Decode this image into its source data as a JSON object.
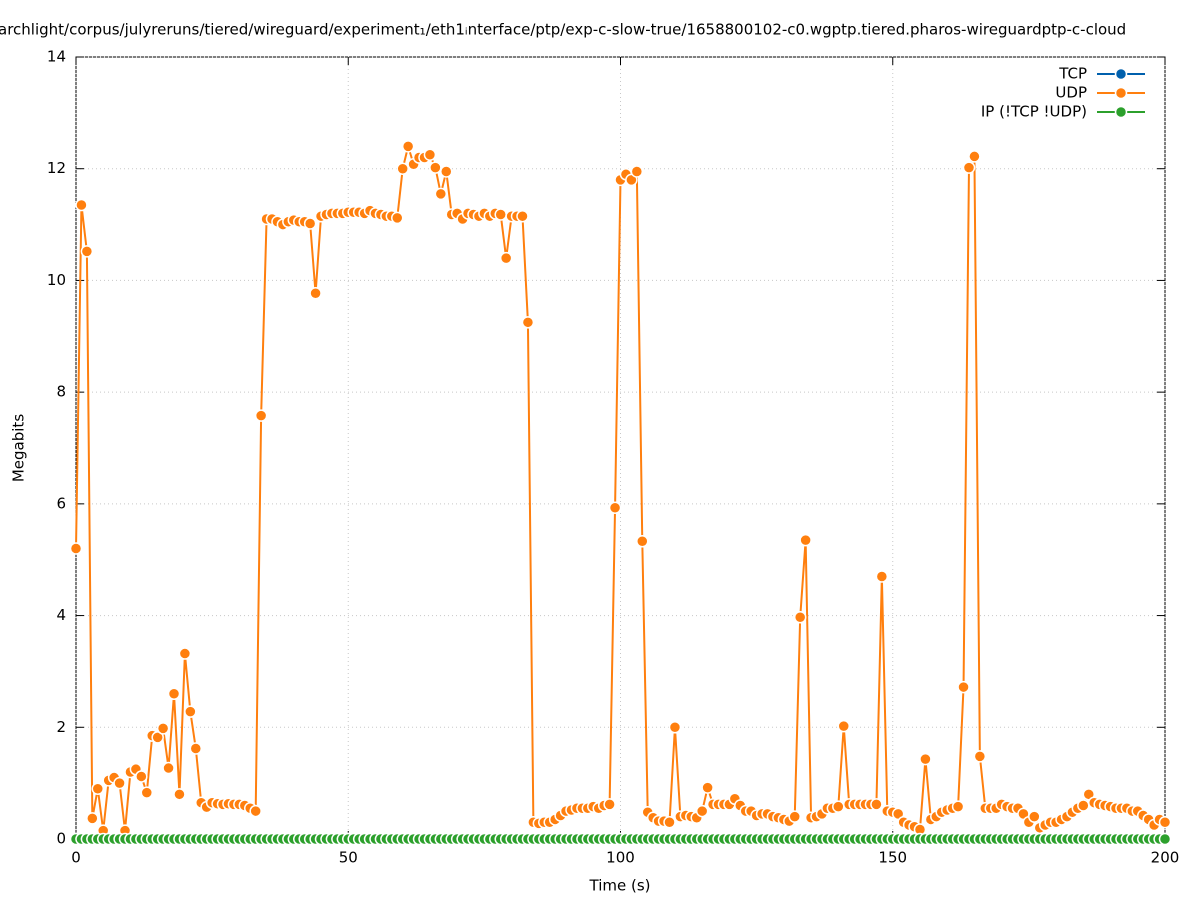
{
  "chart_data": {
    "type": "line",
    "title": "archlight/corpus/julyreruns/tiered/wireguard/experiment₁/eth1ᵢnterface/ptp/exp-c-slow-true/1658800102-c0.wgptp.tiered.pharos-wireguardptp-c-cloud",
    "xlabel": "Time (s)",
    "ylabel": "Megabits",
    "xlim": [
      0,
      200
    ],
    "xticks": [
      0,
      50,
      100,
      150,
      200
    ],
    "ylim": [
      0,
      14
    ],
    "yticks": [
      0,
      2,
      4,
      6,
      8,
      10,
      12,
      14
    ],
    "grid": true,
    "legend": "top-right",
    "x": [
      0,
      1,
      2,
      3,
      4,
      5,
      6,
      7,
      8,
      9,
      10,
      11,
      12,
      13,
      14,
      15,
      16,
      17,
      18,
      19,
      20,
      21,
      22,
      23,
      24,
      25,
      26,
      27,
      28,
      29,
      30,
      31,
      32,
      33,
      34,
      35,
      36,
      37,
      38,
      39,
      40,
      41,
      42,
      43,
      44,
      45,
      46,
      47,
      48,
      49,
      50,
      51,
      52,
      53,
      54,
      55,
      56,
      57,
      58,
      59,
      60,
      61,
      62,
      63,
      64,
      65,
      66,
      67,
      68,
      69,
      70,
      71,
      72,
      73,
      74,
      75,
      76,
      77,
      78,
      79,
      80,
      81,
      82,
      83,
      84,
      85,
      86,
      87,
      88,
      89,
      90,
      91,
      92,
      93,
      94,
      95,
      96,
      97,
      98,
      99,
      100,
      101,
      102,
      103,
      104,
      105,
      106,
      107,
      108,
      109,
      110,
      111,
      112,
      113,
      114,
      115,
      116,
      117,
      118,
      119,
      120,
      121,
      122,
      123,
      124,
      125,
      126,
      127,
      128,
      129,
      130,
      131,
      132,
      133,
      134,
      135,
      136,
      137,
      138,
      139,
      140,
      141,
      142,
      143,
      144,
      145,
      146,
      147,
      148,
      149,
      150,
      151,
      152,
      153,
      154,
      155,
      156,
      157,
      158,
      159,
      160,
      161,
      162,
      163,
      164,
      165,
      166,
      167,
      168,
      169,
      170,
      171,
      172,
      173,
      174,
      175,
      176,
      177,
      178,
      179,
      180,
      181,
      182,
      183,
      184,
      185,
      186,
      187,
      188,
      189,
      190,
      191,
      192,
      193,
      194,
      195,
      196,
      197,
      198,
      199,
      200
    ],
    "series": [
      {
        "name": "TCP",
        "color": "#0060ad",
        "values": [
          0,
          0,
          0,
          0,
          0,
          0,
          0,
          0,
          0,
          0,
          0,
          0,
          0,
          0,
          0,
          0,
          0,
          0,
          0,
          0,
          0,
          0,
          0,
          0,
          0,
          0,
          0,
          0,
          0,
          0,
          0,
          0,
          0,
          0,
          0,
          0,
          0,
          0,
          0,
          0,
          0,
          0,
          0,
          0,
          0,
          0,
          0,
          0,
          0,
          0,
          0,
          0,
          0,
          0,
          0,
          0,
          0,
          0,
          0,
          0,
          0,
          0,
          0,
          0,
          0,
          0,
          0,
          0,
          0,
          0,
          0,
          0,
          0,
          0,
          0,
          0,
          0,
          0,
          0,
          0,
          0,
          0,
          0,
          0,
          0,
          0,
          0,
          0,
          0,
          0,
          0,
          0,
          0,
          0,
          0,
          0,
          0,
          0,
          0,
          0,
          0,
          0,
          0,
          0,
          0,
          0,
          0,
          0,
          0,
          0,
          0,
          0,
          0,
          0,
          0,
          0,
          0,
          0,
          0,
          0,
          0,
          0,
          0,
          0,
          0,
          0,
          0,
          0,
          0,
          0,
          0,
          0,
          0,
          0,
          0,
          0,
          0,
          0,
          0,
          0,
          0,
          0,
          0,
          0,
          0,
          0,
          0,
          0,
          0,
          0,
          0,
          0,
          0,
          0,
          0,
          0,
          0,
          0,
          0,
          0,
          0,
          0,
          0,
          0,
          0,
          0,
          0,
          0,
          0,
          0,
          0,
          0,
          0,
          0,
          0,
          0,
          0,
          0,
          0,
          0,
          0,
          0,
          0,
          0,
          0,
          0,
          0,
          0,
          0,
          0,
          0,
          0,
          0,
          0,
          0,
          0,
          0,
          0,
          0,
          0,
          0
        ]
      },
      {
        "name": "UDP",
        "color": "#ff7f0e",
        "values": [
          5.2,
          11.35,
          10.52,
          0.37,
          0.9,
          0.15,
          1.05,
          1.1,
          1.0,
          0.15,
          1.2,
          1.25,
          1.12,
          0.83,
          1.85,
          1.82,
          1.98,
          1.27,
          2.6,
          0.8,
          3.32,
          2.28,
          1.62,
          0.65,
          0.57,
          0.65,
          0.63,
          0.62,
          0.63,
          0.62,
          0.62,
          0.6,
          0.55,
          0.5,
          7.58,
          11.1,
          11.1,
          11.05,
          11.0,
          11.05,
          11.08,
          11.05,
          11.05,
          11.02,
          9.77,
          11.15,
          11.18,
          11.2,
          11.2,
          11.2,
          11.22,
          11.22,
          11.22,
          11.2,
          11.25,
          11.2,
          11.18,
          11.15,
          11.15,
          11.12,
          12.0,
          12.4,
          12.08,
          12.2,
          12.2,
          12.25,
          12.02,
          11.55,
          11.95,
          11.18,
          11.2,
          11.1,
          11.2,
          11.18,
          11.15,
          11.2,
          11.15,
          11.2,
          11.18,
          10.4,
          11.15,
          11.15,
          11.15,
          9.25,
          0.3,
          0.28,
          0.3,
          0.3,
          0.35,
          0.42,
          0.5,
          0.52,
          0.55,
          0.55,
          0.55,
          0.58,
          0.55,
          0.6,
          0.62,
          5.93,
          11.8,
          11.9,
          11.8,
          11.95,
          5.33,
          0.48,
          0.38,
          0.32,
          0.32,
          0.3,
          2.0,
          0.4,
          0.42,
          0.4,
          0.38,
          0.5,
          0.92,
          0.62,
          0.62,
          0.62,
          0.62,
          0.72,
          0.6,
          0.5,
          0.5,
          0.42,
          0.45,
          0.45,
          0.4,
          0.38,
          0.35,
          0.32,
          0.4,
          3.97,
          5.35,
          0.38,
          0.4,
          0.45,
          0.55,
          0.55,
          0.58,
          2.02,
          0.62,
          0.62,
          0.62,
          0.62,
          0.62,
          0.62,
          4.7,
          0.5,
          0.48,
          0.45,
          0.3,
          0.25,
          0.22,
          0.17,
          1.43,
          0.35,
          0.4,
          0.48,
          0.52,
          0.55,
          0.58,
          2.72,
          12.02,
          12.22,
          1.48,
          0.55,
          0.55,
          0.55,
          0.62,
          0.58,
          0.55,
          0.55,
          0.45,
          0.3,
          0.4,
          0.2,
          0.25,
          0.3,
          0.3,
          0.35,
          0.4,
          0.48,
          0.55,
          0.6,
          0.8,
          0.65,
          0.62,
          0.6,
          0.58,
          0.55,
          0.55,
          0.55,
          0.5,
          0.5,
          0.42,
          0.35,
          0.25,
          0.35,
          0.3
        ]
      },
      {
        "name": "IP (!TCP  !UDP)",
        "color": "#2ca02c",
        "values": [
          0,
          0,
          0,
          0,
          0,
          0,
          0,
          0,
          0,
          0,
          0,
          0,
          0,
          0,
          0,
          0,
          0,
          0,
          0,
          0,
          0,
          0,
          0,
          0,
          0,
          0,
          0,
          0,
          0,
          0,
          0,
          0,
          0,
          0,
          0,
          0,
          0,
          0,
          0,
          0,
          0,
          0,
          0,
          0,
          0,
          0,
          0,
          0,
          0,
          0,
          0,
          0,
          0,
          0,
          0,
          0,
          0,
          0,
          0,
          0,
          0,
          0,
          0,
          0,
          0,
          0,
          0,
          0,
          0,
          0,
          0,
          0,
          0,
          0,
          0,
          0,
          0,
          0,
          0,
          0,
          0,
          0,
          0,
          0,
          0,
          0,
          0,
          0,
          0,
          0,
          0,
          0,
          0,
          0,
          0,
          0,
          0,
          0,
          0,
          0,
          0,
          0,
          0,
          0,
          0,
          0,
          0,
          0,
          0,
          0,
          0,
          0,
          0,
          0,
          0,
          0,
          0,
          0,
          0,
          0,
          0,
          0,
          0,
          0,
          0,
          0,
          0,
          0,
          0,
          0,
          0,
          0,
          0,
          0,
          0,
          0,
          0,
          0,
          0,
          0,
          0,
          0,
          0,
          0,
          0,
          0,
          0,
          0,
          0,
          0,
          0,
          0,
          0,
          0,
          0,
          0,
          0,
          0,
          0,
          0,
          0,
          0,
          0,
          0,
          0,
          0,
          0,
          0,
          0,
          0,
          0,
          0,
          0,
          0,
          0,
          0,
          0,
          0,
          0,
          0,
          0,
          0,
          0,
          0,
          0,
          0,
          0,
          0,
          0,
          0,
          0,
          0,
          0,
          0,
          0,
          0,
          0,
          0,
          0,
          0,
          0
        ]
      }
    ]
  }
}
